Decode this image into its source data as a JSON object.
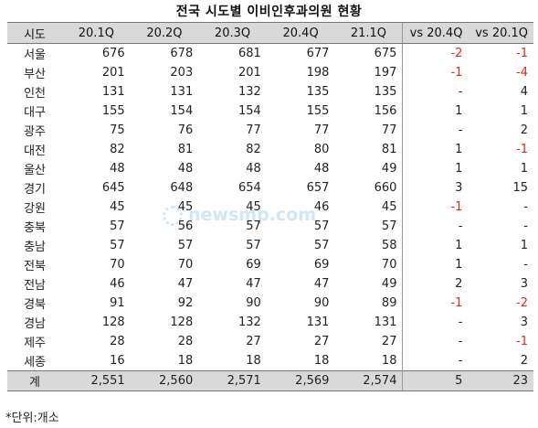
{
  "title": "전국 시도별 이비인후과의원 현황",
  "footnote": "*단위:개소",
  "watermark": "newsmp.com",
  "colors": {
    "header_bg": "#d9d9d9",
    "negative": "#e0281e",
    "watermark": "#5aa9e6"
  },
  "chart_data": {
    "type": "table",
    "columns": [
      "시도",
      "20.1Q",
      "20.2Q",
      "20.3Q",
      "20.4Q",
      "21.1Q",
      "vs 20.4Q",
      "vs 20.1Q"
    ],
    "rows": [
      [
        "서울",
        "676",
        "678",
        "681",
        "677",
        "675",
        "-2",
        "-1"
      ],
      [
        "부산",
        "201",
        "203",
        "201",
        "198",
        "197",
        "-1",
        "-4"
      ],
      [
        "인천",
        "131",
        "131",
        "132",
        "135",
        "135",
        "-",
        "4"
      ],
      [
        "대구",
        "155",
        "154",
        "154",
        "155",
        "156",
        "1",
        "1"
      ],
      [
        "광주",
        "75",
        "76",
        "77",
        "77",
        "77",
        "-",
        "2"
      ],
      [
        "대전",
        "82",
        "81",
        "82",
        "80",
        "81",
        "1",
        "-1"
      ],
      [
        "울산",
        "48",
        "48",
        "48",
        "48",
        "49",
        "1",
        "1"
      ],
      [
        "경기",
        "645",
        "648",
        "654",
        "657",
        "660",
        "3",
        "15"
      ],
      [
        "강원",
        "45",
        "45",
        "45",
        "46",
        "45",
        "-1",
        "-"
      ],
      [
        "충북",
        "57",
        "56",
        "57",
        "57",
        "57",
        "-",
        "-"
      ],
      [
        "충남",
        "57",
        "57",
        "57",
        "57",
        "58",
        "1",
        "1"
      ],
      [
        "전북",
        "70",
        "70",
        "69",
        "69",
        "70",
        "1",
        "-"
      ],
      [
        "전남",
        "46",
        "47",
        "47",
        "47",
        "49",
        "2",
        "3"
      ],
      [
        "경북",
        "91",
        "92",
        "90",
        "90",
        "89",
        "-1",
        "-2"
      ],
      [
        "경남",
        "128",
        "128",
        "132",
        "131",
        "131",
        "-",
        "3"
      ],
      [
        "제주",
        "28",
        "28",
        "27",
        "27",
        "27",
        "-",
        "-1"
      ],
      [
        "세종",
        "16",
        "18",
        "18",
        "18",
        "18",
        "-",
        "2"
      ]
    ],
    "total": [
      "계",
      "2,551",
      "2,560",
      "2,571",
      "2,569",
      "2,574",
      "5",
      "23"
    ]
  }
}
